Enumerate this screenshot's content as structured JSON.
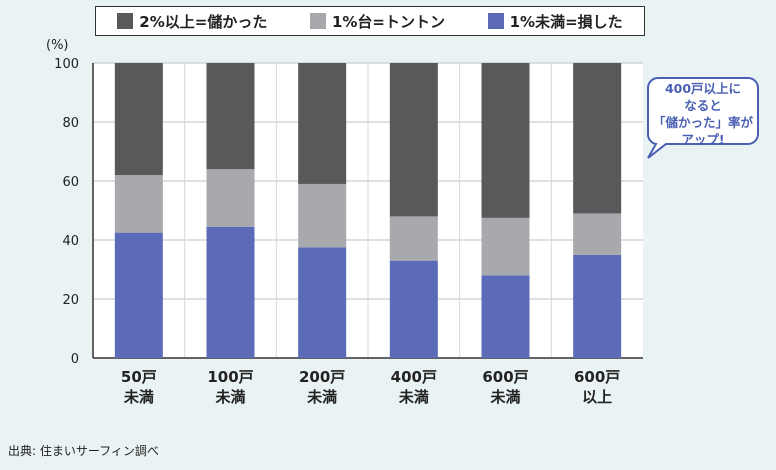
{
  "legend": [
    {
      "label": "2%以上=儲かった",
      "color": "#58595b"
    },
    {
      "label": "1%台=トントン",
      "color": "#a7a9ac"
    },
    {
      "label": "1%未満=損した",
      "color": "#5b6bb8"
    }
  ],
  "unit_label": "(%)",
  "callout": "400戸以上に\nなると\n「儲かった」率が\nアップ!",
  "source": "出典: 住まいサーフィン調べ",
  "chart_data": {
    "type": "bar",
    "stacked": true,
    "categories": [
      "50戸\n未満",
      "100戸\n未満",
      "200戸\n未満",
      "400戸\n未満",
      "600戸\n未満",
      "600戸\n以上"
    ],
    "series": [
      {
        "name": "1%未満=損した",
        "color": "#5b6bb8",
        "values": [
          42.5,
          44.5,
          37.5,
          33,
          28,
          35
        ]
      },
      {
        "name": "1%台=トントン",
        "color": "#a7a9ac",
        "values": [
          19.5,
          19.5,
          21.5,
          15,
          19.5,
          14
        ]
      },
      {
        "name": "2%以上=儲かった",
        "color": "#58595b",
        "values": [
          38,
          36,
          41,
          52,
          52.5,
          51
        ]
      }
    ],
    "ylabel": "(%)",
    "ylim": [
      0,
      100
    ],
    "yticks": [
      0,
      20,
      40,
      60,
      80,
      100
    ],
    "grid": true
  }
}
